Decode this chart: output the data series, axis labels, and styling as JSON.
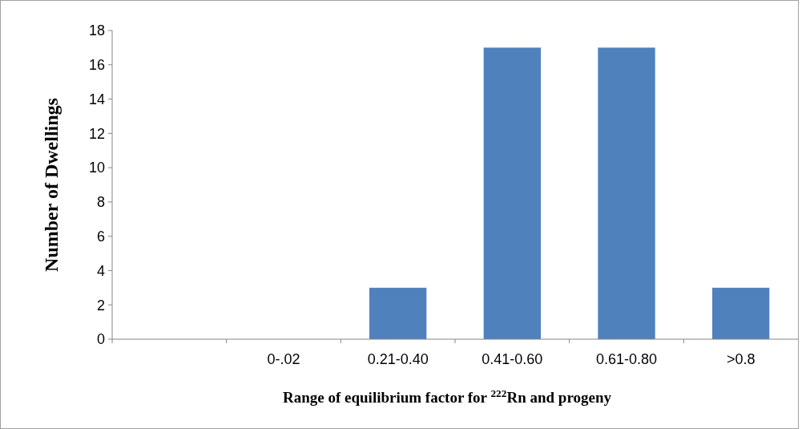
{
  "chart_data": {
    "type": "bar",
    "xlabel": "Range of equilibrium factor for $^{222}$Rn and progeny",
    "ylabel": "Number of Dwellings",
    "categories": [
      null,
      "0-.02",
      "0.21-0.40",
      "0.41-0.60",
      "0.61-0.80",
      ">0.8"
    ],
    "values": [
      null,
      0,
      3,
      17,
      17,
      3
    ],
    "color": "#4f81bd",
    "ylim": [
      0,
      18
    ],
    "yticks": [
      0,
      2,
      4,
      6,
      8,
      10,
      12,
      14,
      16,
      18
    ]
  }
}
